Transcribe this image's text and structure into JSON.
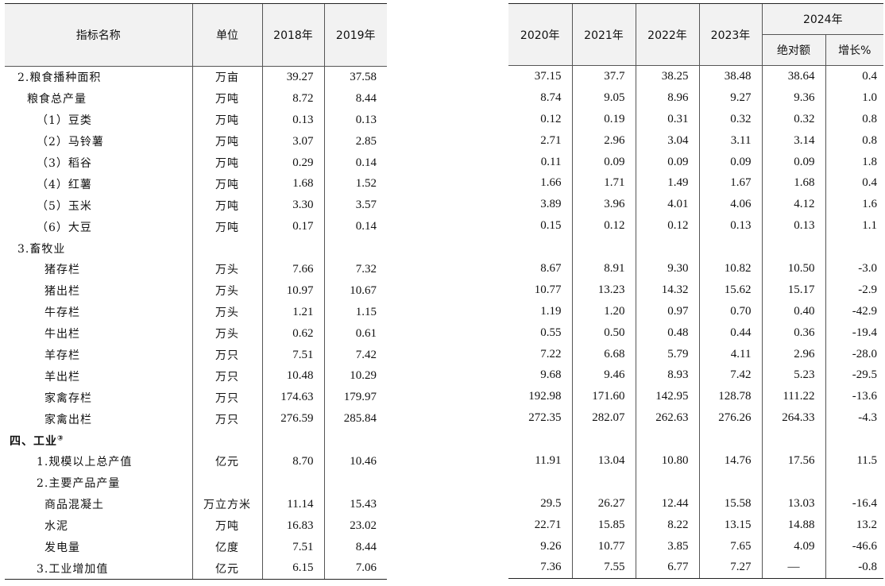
{
  "headers": {
    "name": "指标名称",
    "unit": "单位",
    "y2018": "2018年",
    "y2019": "2019年",
    "y2020": "2020年",
    "y2021": "2021年",
    "y2022": "2022年",
    "y2023": "2023年",
    "y2024": "2024年",
    "abs": "绝对额",
    "growth": "增长%"
  },
  "rows": [
    {
      "name": "2.粮食播种面积",
      "unit": "万亩",
      "indent": 1,
      "v": [
        "39.27",
        "37.58",
        "37.15",
        "37.7",
        "38.25",
        "38.48",
        "38.64",
        "0.4"
      ]
    },
    {
      "name": "粮食总产量",
      "unit": "万吨",
      "indent": 2,
      "v": [
        "8.72",
        "8.44",
        "8.74",
        "9.05",
        "8.96",
        "9.27",
        "9.36",
        "1.0"
      ]
    },
    {
      "name": "（1）豆类",
      "unit": "万吨",
      "indent": 3,
      "v": [
        "0.13",
        "0.13",
        "0.12",
        "0.19",
        "0.31",
        "0.32",
        "0.32",
        "0.8"
      ]
    },
    {
      "name": "（2）马铃薯",
      "unit": "万吨",
      "indent": 3,
      "v": [
        "3.07",
        "2.85",
        "2.71",
        "2.96",
        "3.04",
        "3.11",
        "3.14",
        "0.8"
      ]
    },
    {
      "name": "（3）稻谷",
      "unit": "万吨",
      "indent": 3,
      "v": [
        "0.29",
        "0.14",
        "0.11",
        "0.09",
        "0.09",
        "0.09",
        "0.09",
        "1.8"
      ]
    },
    {
      "name": "（4）红薯",
      "unit": "万吨",
      "indent": 3,
      "v": [
        "1.68",
        "1.52",
        "1.66",
        "1.71",
        "1.49",
        "1.67",
        "1.68",
        "0.4"
      ]
    },
    {
      "name": "（5）玉米",
      "unit": "万吨",
      "indent": 3,
      "v": [
        "3.30",
        "3.57",
        "3.89",
        "3.96",
        "4.01",
        "4.06",
        "4.12",
        "1.6"
      ]
    },
    {
      "name": "（6）大豆",
      "unit": "万吨",
      "indent": 3,
      "v": [
        "0.17",
        "0.14",
        "0.15",
        "0.12",
        "0.12",
        "0.13",
        "0.13",
        "1.1"
      ]
    },
    {
      "name": "3.畜牧业",
      "unit": "",
      "indent": 1,
      "v": [
        "",
        "",
        "",
        "",
        "",
        "",
        "",
        ""
      ]
    },
    {
      "name": "猪存栏",
      "unit": "万头",
      "indent": 4,
      "v": [
        "7.66",
        "7.32",
        "8.67",
        "8.91",
        "9.30",
        "10.82",
        "10.50",
        "-3.0"
      ]
    },
    {
      "name": "猪出栏",
      "unit": "万头",
      "indent": 4,
      "v": [
        "10.97",
        "10.67",
        "10.77",
        "13.23",
        "14.32",
        "15.62",
        "15.17",
        "-2.9"
      ]
    },
    {
      "name": "牛存栏",
      "unit": "万头",
      "indent": 4,
      "v": [
        "1.21",
        "1.15",
        "1.19",
        "1.20",
        "0.97",
        "0.70",
        "0.40",
        "-42.9"
      ]
    },
    {
      "name": "牛出栏",
      "unit": "万头",
      "indent": 4,
      "v": [
        "0.62",
        "0.61",
        "0.55",
        "0.50",
        "0.48",
        "0.44",
        "0.36",
        "-19.4"
      ]
    },
    {
      "name": "羊存栏",
      "unit": "万只",
      "indent": 4,
      "v": [
        "7.51",
        "7.42",
        "7.22",
        "6.68",
        "5.79",
        "4.11",
        "2.96",
        "-28.0"
      ]
    },
    {
      "name": "羊出栏",
      "unit": "万只",
      "indent": 4,
      "v": [
        "10.48",
        "10.29",
        "9.68",
        "9.46",
        "8.93",
        "7.42",
        "5.23",
        "-29.5"
      ]
    },
    {
      "name": "家禽存栏",
      "unit": "万只",
      "indent": 4,
      "v": [
        "174.63",
        "179.97",
        "192.98",
        "171.60",
        "142.95",
        "128.78",
        "111.22",
        "-13.6"
      ]
    },
    {
      "name": "家禽出栏",
      "unit": "万只",
      "indent": 4,
      "v": [
        "276.59",
        "285.84",
        "272.35",
        "282.07",
        "262.63",
        "276.26",
        "264.33",
        "-4.3"
      ]
    },
    {
      "name": "四、工业",
      "sup": "③",
      "unit": "",
      "indent": 0,
      "section": true,
      "v": [
        "",
        "",
        "",
        "",
        "",
        "",
        "",
        ""
      ]
    },
    {
      "name": "1.规模以上总产值",
      "unit": "亿元",
      "indent": 3,
      "v": [
        "8.70",
        "10.46",
        "11.91",
        "13.04",
        "10.80",
        "14.76",
        "17.56",
        "11.5"
      ]
    },
    {
      "name": "2.主要产品产量",
      "unit": "",
      "indent": 3,
      "v": [
        "",
        "",
        "",
        "",
        "",
        "",
        "",
        ""
      ]
    },
    {
      "name": "商品混凝土",
      "unit": "万立方米",
      "indent": 4,
      "v": [
        "11.14",
        "15.43",
        "29.5",
        "26.27",
        "12.44",
        "15.58",
        "13.03",
        "-16.4"
      ]
    },
    {
      "name": "水泥",
      "unit": "万吨",
      "indent": 4,
      "v": [
        "16.83",
        "23.02",
        "22.71",
        "15.85",
        "8.22",
        "13.15",
        "14.88",
        "13.2"
      ]
    },
    {
      "name": "发电量",
      "unit": "亿度",
      "indent": 4,
      "v": [
        "7.51",
        "8.44",
        "9.26",
        "10.77",
        "3.85",
        "7.65",
        "4.09",
        "-46.6"
      ]
    },
    {
      "name": "3.工业增加值",
      "unit": "亿元",
      "indent": 3,
      "v": [
        "6.15",
        "7.06",
        "7.36",
        "7.55",
        "6.77",
        "7.27",
        "—",
        "-0.8"
      ]
    }
  ]
}
